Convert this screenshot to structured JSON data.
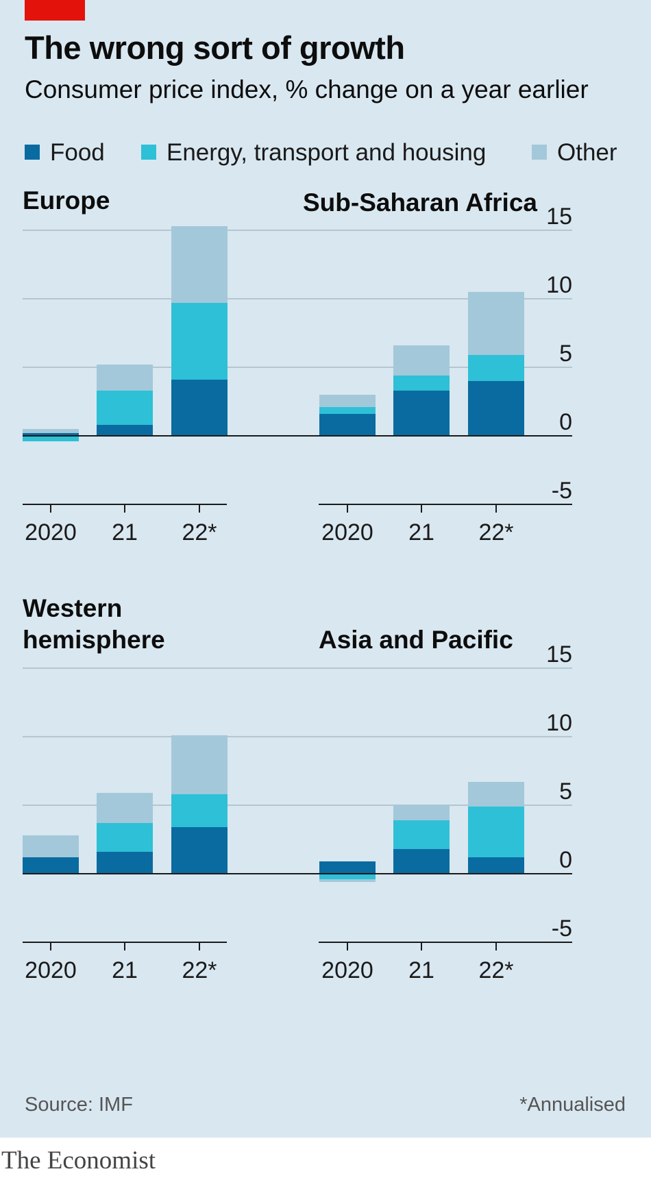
{
  "header": {
    "title": "The wrong sort of growth",
    "subtitle": "Consumer price index, % change on a year earlier"
  },
  "colors": {
    "accent": "#e3120b",
    "background": "#d9e7f0",
    "food": "#0a6ba0",
    "energy": "#2ec0d6",
    "other": "#a3c8da"
  },
  "legend": [
    {
      "label": "Food",
      "color": "#0a6ba0"
    },
    {
      "label": "Energy, transport and housing",
      "color": "#2ec0d6"
    },
    {
      "label": "Other",
      "color": "#a3c8da"
    }
  ],
  "footer": {
    "source": "Source: IMF",
    "note": "*Annualised",
    "brand": "The Economist"
  },
  "chart_data": [
    {
      "type": "bar",
      "stacked": true,
      "title": "Europe",
      "categories": [
        "2020",
        "21",
        "22*"
      ],
      "ylim": [
        -5,
        15
      ],
      "yticks": [
        -5,
        0,
        5,
        10,
        15
      ],
      "series": [
        {
          "name": "Food",
          "values": [
            0.2,
            0.8,
            4.1
          ]
        },
        {
          "name": "Energy, transport and housing",
          "values": [
            -0.4,
            2.5,
            5.6
          ]
        },
        {
          "name": "Other",
          "values": [
            0.3,
            1.9,
            5.6
          ]
        }
      ]
    },
    {
      "type": "bar",
      "stacked": true,
      "title": "Sub-Saharan Africa",
      "categories": [
        "2020",
        "21",
        "22*"
      ],
      "ylim": [
        -5,
        15
      ],
      "yticks": [
        -5,
        0,
        5,
        10,
        15
      ],
      "series": [
        {
          "name": "Food",
          "values": [
            1.6,
            3.3,
            4.0
          ]
        },
        {
          "name": "Energy, transport and housing",
          "values": [
            0.5,
            1.1,
            1.9
          ]
        },
        {
          "name": "Other",
          "values": [
            0.9,
            2.2,
            4.6
          ]
        }
      ]
    },
    {
      "type": "bar",
      "stacked": true,
      "title": "Western hemisphere",
      "title_lines": [
        "Western",
        "hemisphere"
      ],
      "categories": [
        "2020",
        "21",
        "22*"
      ],
      "ylim": [
        -5,
        15
      ],
      "yticks": [
        -5,
        0,
        5,
        10,
        15
      ],
      "series": [
        {
          "name": "Food",
          "values": [
            1.2,
            1.6,
            3.4
          ]
        },
        {
          "name": "Energy, transport and housing",
          "values": [
            0.0,
            2.1,
            2.4
          ]
        },
        {
          "name": "Other",
          "values": [
            1.6,
            2.2,
            4.3
          ]
        }
      ]
    },
    {
      "type": "bar",
      "stacked": true,
      "title": "Asia and Pacific",
      "categories": [
        "2020",
        "21",
        "22*"
      ],
      "ylim": [
        -5,
        15
      ],
      "yticks": [
        -5,
        0,
        5,
        10,
        15
      ],
      "series": [
        {
          "name": "Food",
          "values": [
            0.9,
            1.8,
            1.2
          ]
        },
        {
          "name": "Energy, transport and housing",
          "values": [
            -0.4,
            2.1,
            3.7
          ]
        },
        {
          "name": "Other",
          "values": [
            -0.2,
            1.1,
            1.8
          ]
        }
      ]
    }
  ]
}
